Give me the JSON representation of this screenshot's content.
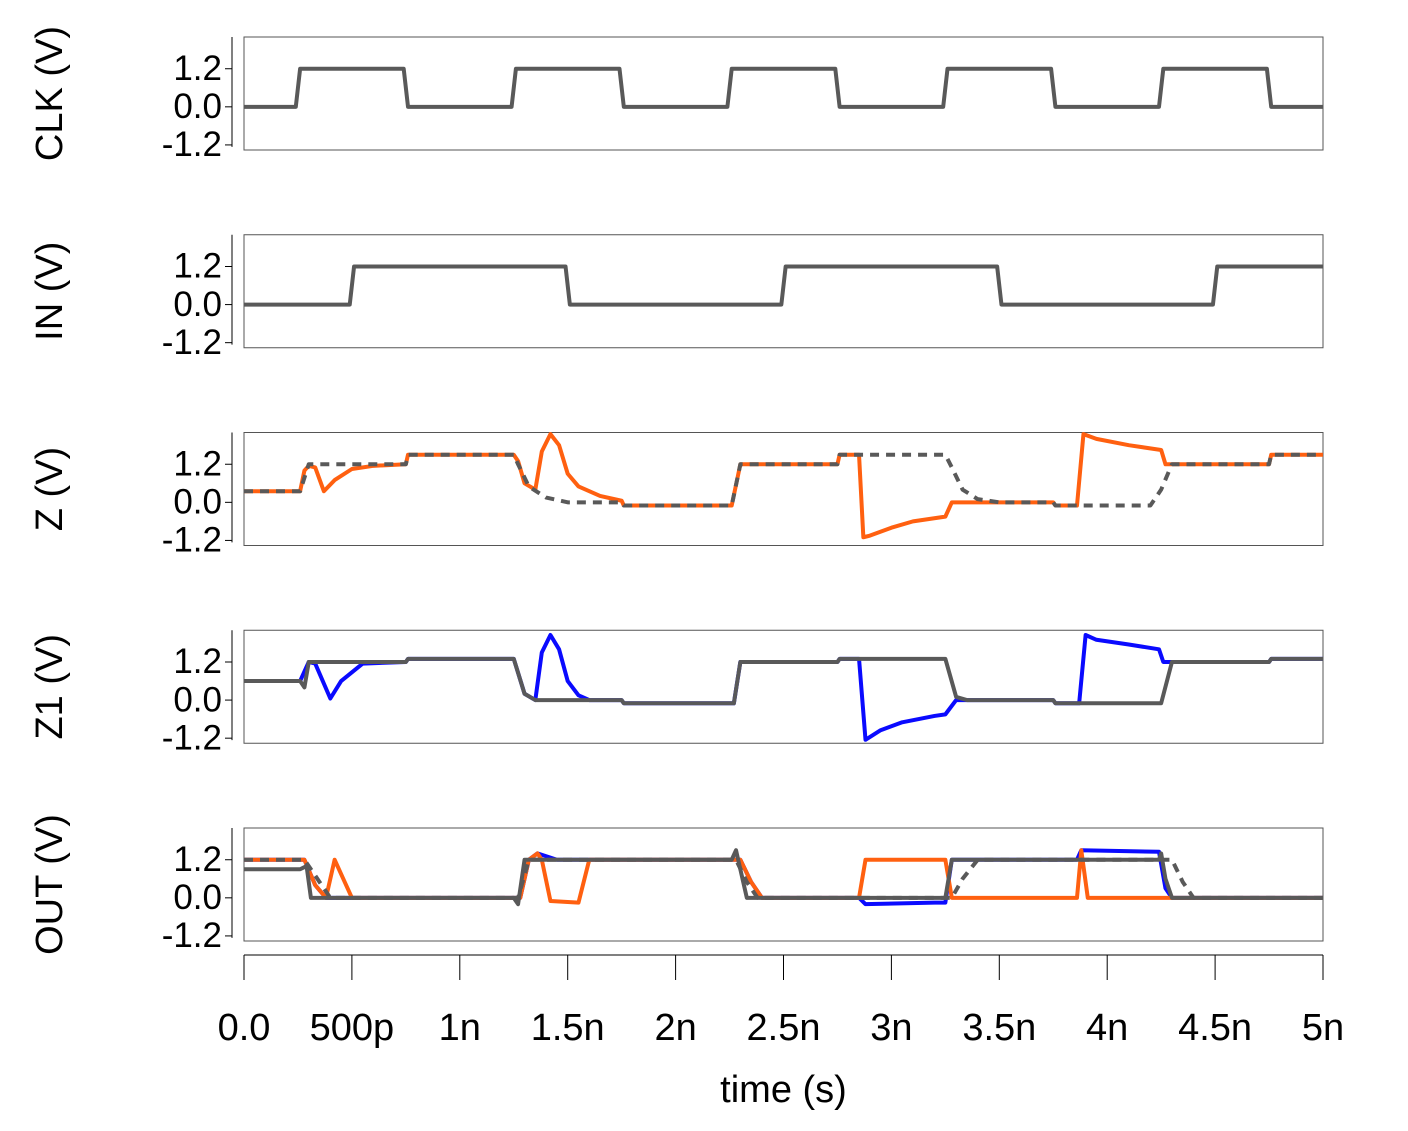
{
  "chart_data": [
    {
      "type": "line",
      "ylabel": "CLK (V)",
      "xlim": [
        0,
        5e-09
      ],
      "ylim": [
        -1.36,
        2.2
      ],
      "yticks": [
        1.2,
        {
          "value": 0,
          "label": "0.0"
        },
        -1.2
      ],
      "series": [
        {
          "color": "#595959",
          "dashed": false,
          "x": [
            0,
            2.4e-10,
            2.6e-10,
            7.4e-10,
            7.6e-10,
            1.24e-09,
            1.26e-09,
            1.74e-09,
            1.76e-09,
            2.24e-09,
            2.26e-09,
            2.74e-09,
            2.76e-09,
            3.24e-09,
            3.26e-09,
            3.74e-09,
            3.76e-09,
            4.24e-09,
            4.26e-09,
            4.74e-09,
            4.76e-09,
            5e-09
          ],
          "values": [
            0,
            0,
            1.2,
            1.2,
            0,
            0,
            1.2,
            1.2,
            0,
            0,
            1.2,
            1.2,
            0,
            0,
            1.2,
            1.2,
            0,
            0,
            1.2,
            1.2,
            0,
            0
          ]
        }
      ]
    },
    {
      "type": "line",
      "ylabel": "IN (V)",
      "xlim": [
        0,
        5e-09
      ],
      "ylim": [
        -1.36,
        2.2
      ],
      "yticks": [
        1.2,
        {
          "value": 0,
          "label": "0.0"
        },
        -1.2
      ],
      "series": [
        {
          "color": "#595959",
          "dashed": false,
          "x": [
            0,
            4.9e-10,
            5.1e-10,
            1.49e-09,
            1.51e-09,
            2.49e-09,
            2.51e-09,
            3.49e-09,
            3.51e-09,
            4.49e-09,
            4.51e-09,
            5e-09
          ],
          "values": [
            0,
            0,
            1.2,
            1.2,
            0,
            0,
            1.2,
            1.2,
            0,
            0,
            1.2,
            1.2
          ]
        }
      ]
    },
    {
      "type": "line",
      "ylabel": "Z (V)",
      "xlim": [
        0,
        5e-09
      ],
      "ylim": [
        -1.36,
        2.2
      ],
      "yticks": [
        1.2,
        {
          "value": 0,
          "label": "0.0"
        },
        -1.2
      ],
      "series": [
        {
          "color": "#ff6010",
          "dashed": false,
          "x": [
            0,
            2.6e-10,
            2.8e-10,
            3e-10,
            3.3e-10,
            3.7e-10,
            4.2e-10,
            5e-10,
            6e-10,
            7.5e-10,
            7.6e-10,
            1.25e-09,
            1.27e-09,
            1.3e-09,
            1.35e-09,
            1.38e-09,
            1.42e-09,
            1.46e-09,
            1.5e-09,
            1.55e-09,
            1.65e-09,
            1.75e-09,
            1.76e-09,
            2.26e-09,
            2.3e-09,
            2.75e-09,
            2.76e-09,
            2.85e-09,
            2.87e-09,
            2.9e-09,
            3e-09,
            3.1e-09,
            3.25e-09,
            3.28e-09,
            3.75e-09,
            3.76e-09,
            3.86e-09,
            3.89e-09,
            3.95e-09,
            4.1e-09,
            4.25e-09,
            4.27e-09,
            4.75e-09,
            4.76e-09,
            5e-09
          ],
          "values": [
            0.35,
            0.35,
            1.0,
            1.15,
            1.1,
            0.35,
            0.7,
            1.05,
            1.15,
            1.2,
            1.5,
            1.5,
            1.3,
            0.6,
            0.4,
            1.6,
            2.15,
            1.8,
            0.9,
            0.5,
            0.2,
            0.05,
            -0.1,
            -0.1,
            1.2,
            1.2,
            1.5,
            1.5,
            -1.1,
            -1.05,
            -0.8,
            -0.6,
            -0.45,
            0,
            0,
            -0.1,
            -0.1,
            2.15,
            2.0,
            1.8,
            1.65,
            1.2,
            1.2,
            1.5,
            1.5
          ]
        },
        {
          "color": "#595959",
          "dashed": true,
          "x": [
            0,
            2.6e-10,
            3e-10,
            7.5e-10,
            7.6e-10,
            1.25e-09,
            1.27e-09,
            1.32e-09,
            1.4e-09,
            1.5e-09,
            1.75e-09,
            1.76e-09,
            2.26e-09,
            2.3e-09,
            2.75e-09,
            2.76e-09,
            3.25e-09,
            3.28e-09,
            3.33e-09,
            3.4e-09,
            3.5e-09,
            3.75e-09,
            3.76e-09,
            4.2e-09,
            4.25e-09,
            4.3e-09,
            4.75e-09,
            4.76e-09,
            5e-09
          ],
          "values": [
            0.35,
            0.35,
            1.2,
            1.2,
            1.5,
            1.5,
            1.2,
            0.5,
            0.15,
            0,
            0,
            -0.1,
            -0.1,
            1.2,
            1.2,
            1.5,
            1.5,
            1.1,
            0.4,
            0.1,
            0,
            0,
            -0.1,
            -0.1,
            0.4,
            1.2,
            1.2,
            1.5,
            1.5
          ]
        }
      ]
    },
    {
      "type": "line",
      "ylabel": "Z1 (V)",
      "xlim": [
        0,
        5e-09
      ],
      "ylim": [
        -1.36,
        2.2
      ],
      "yticks": [
        1.2,
        {
          "value": 0,
          "label": "0.0"
        },
        -1.2
      ],
      "series": [
        {
          "color": "#0a0aff",
          "dashed": false,
          "x": [
            0,
            2.6e-10,
            3e-10,
            3.3e-10,
            4e-10,
            4.5e-10,
            5.5e-10,
            7.5e-10,
            7.6e-10,
            1.25e-09,
            1.3e-09,
            1.35e-09,
            1.38e-09,
            1.42e-09,
            1.46e-09,
            1.5e-09,
            1.55e-09,
            1.6e-09,
            1.75e-09,
            1.76e-09,
            2.27e-09,
            2.3e-09,
            2.75e-09,
            2.76e-09,
            2.85e-09,
            2.88e-09,
            2.95e-09,
            3.05e-09,
            3.2e-09,
            3.25e-09,
            3.3e-09,
            3.75e-09,
            3.76e-09,
            3.87e-09,
            3.9e-09,
            3.95e-09,
            4.1e-09,
            4.24e-09,
            4.26e-09,
            4.75e-09,
            4.76e-09,
            5e-09
          ],
          "values": [
            0.6,
            0.6,
            1.2,
            1.15,
            0.05,
            0.6,
            1.15,
            1.2,
            1.3,
            1.3,
            0.2,
            0,
            1.5,
            2.05,
            1.6,
            0.6,
            0.15,
            0,
            0,
            -0.1,
            -0.1,
            1.2,
            1.2,
            1.3,
            1.3,
            -1.25,
            -0.95,
            -0.7,
            -0.5,
            -0.45,
            0,
            0,
            -0.1,
            -0.1,
            2.05,
            1.9,
            1.75,
            1.6,
            1.2,
            1.2,
            1.3,
            1.3
          ]
        },
        {
          "color": "#595959",
          "dashed": false,
          "x": [
            0,
            2.6e-10,
            2.8e-10,
            3e-10,
            7.5e-10,
            7.6e-10,
            1.25e-09,
            1.3e-09,
            1.35e-09,
            1.75e-09,
            1.76e-09,
            2.27e-09,
            2.3e-09,
            2.75e-09,
            2.76e-09,
            3.25e-09,
            3.3e-09,
            3.35e-09,
            3.75e-09,
            3.76e-09,
            4.25e-09,
            4.3e-09,
            4.75e-09,
            4.76e-09,
            5e-09
          ],
          "values": [
            0.6,
            0.6,
            0.4,
            1.2,
            1.2,
            1.3,
            1.3,
            0.2,
            0,
            0,
            -0.1,
            -0.1,
            1.2,
            1.2,
            1.3,
            1.3,
            0.1,
            0,
            0,
            -0.1,
            -0.1,
            1.2,
            1.2,
            1.3,
            1.3
          ]
        }
      ]
    },
    {
      "type": "line",
      "ylabel": "OUT (V)",
      "xlabel": "time (s)",
      "xlim": [
        0,
        5e-09
      ],
      "ylim": [
        -1.36,
        2.2
      ],
      "yticks": [
        1.2,
        {
          "value": 0,
          "label": "0.0"
        },
        -1.2
      ],
      "xticks": [
        {
          "value": 0,
          "label": "0.0"
        },
        {
          "value": 5e-10,
          "label": "500p"
        },
        {
          "value": 1e-09,
          "label": "1n"
        },
        {
          "value": 1.5e-09,
          "label": "1.5n"
        },
        {
          "value": 2e-09,
          "label": "2n"
        },
        {
          "value": 2.5e-09,
          "label": "2.5n"
        },
        {
          "value": 3e-09,
          "label": "3n"
        },
        {
          "value": 3.5e-09,
          "label": "3.5n"
        },
        {
          "value": 4e-09,
          "label": "4n"
        },
        {
          "value": 4.5e-09,
          "label": "4.5n"
        },
        {
          "value": 5e-09,
          "label": "5n"
        }
      ],
      "series": [
        {
          "color": "#0a0aff",
          "dashed": false,
          "x": [
            0,
            2.8e-10,
            3.3e-10,
            3.8e-10,
            1.28e-09,
            1.32e-09,
            1.36e-09,
            1.45e-09,
            1.5e-09,
            2.28e-09,
            2.3e-09,
            2.35e-09,
            2.4e-09,
            2.85e-09,
            2.88e-09,
            3.2e-09,
            3.25e-09,
            3.28e-09,
            3.86e-09,
            3.88e-09,
            4.24e-09,
            4.27e-09,
            4.3e-09,
            5e-09
          ],
          "values": [
            1.2,
            1.2,
            0.4,
            0,
            0,
            1.2,
            1.4,
            1.2,
            1.2,
            1.2,
            1.2,
            0.5,
            0,
            0,
            -0.2,
            -0.15,
            -0.15,
            1.2,
            1.2,
            1.5,
            1.45,
            0.3,
            0,
            0
          ]
        },
        {
          "color": "#ff6010",
          "dashed": false,
          "x": [
            0,
            2.8e-10,
            3.3e-10,
            3.8e-10,
            4.2e-10,
            4.6e-10,
            5e-10,
            1.28e-09,
            1.32e-09,
            1.36e-09,
            1.38e-09,
            1.42e-09,
            1.55e-09,
            1.6e-09,
            2.3e-09,
            2.35e-09,
            2.4e-09,
            2.85e-09,
            2.88e-09,
            3.25e-09,
            3.28e-09,
            3.86e-09,
            3.88e-09,
            3.91e-09,
            4.25e-09,
            5e-09
          ],
          "values": [
            1.2,
            1.2,
            0.4,
            0,
            1.2,
            0.6,
            0,
            0,
            1.2,
            1.4,
            1.2,
            -0.1,
            -0.15,
            1.2,
            1.2,
            0.5,
            0,
            0,
            1.2,
            1.2,
            0,
            0,
            1.5,
            0,
            0,
            0
          ]
        },
        {
          "color": "#595959",
          "dashed": true,
          "x": [
            0,
            2.8e-10,
            3.5e-10,
            4e-10,
            1.27e-09,
            1.32e-09,
            2.28e-09,
            2.33e-09,
            2.38e-09,
            3.28e-09,
            3.33e-09,
            3.4e-09,
            4.3e-09,
            4.35e-09,
            4.4e-09,
            5e-09
          ],
          "values": [
            1.2,
            1.2,
            0.5,
            0,
            0,
            1.2,
            1.2,
            0.5,
            0,
            0,
            0.6,
            1.2,
            1.2,
            0.5,
            0,
            0
          ]
        },
        {
          "color": "#595959",
          "dashed": false,
          "x": [
            0,
            2.6e-10,
            2.9e-10,
            3.1e-10,
            1.25e-09,
            1.27e-09,
            1.3e-09,
            2.26e-09,
            2.28e-09,
            2.3e-09,
            2.33e-09,
            3.25e-09,
            3.28e-09,
            4.24e-09,
            4.25e-09,
            4.27e-09,
            4.3e-09,
            5e-09
          ],
          "values": [
            0.9,
            0.9,
            1.0,
            0,
            0,
            -0.2,
            1.2,
            1.2,
            1.5,
            0.9,
            0,
            0,
            1.2,
            1.2,
            1.4,
            0.6,
            0,
            0
          ]
        }
      ]
    }
  ]
}
